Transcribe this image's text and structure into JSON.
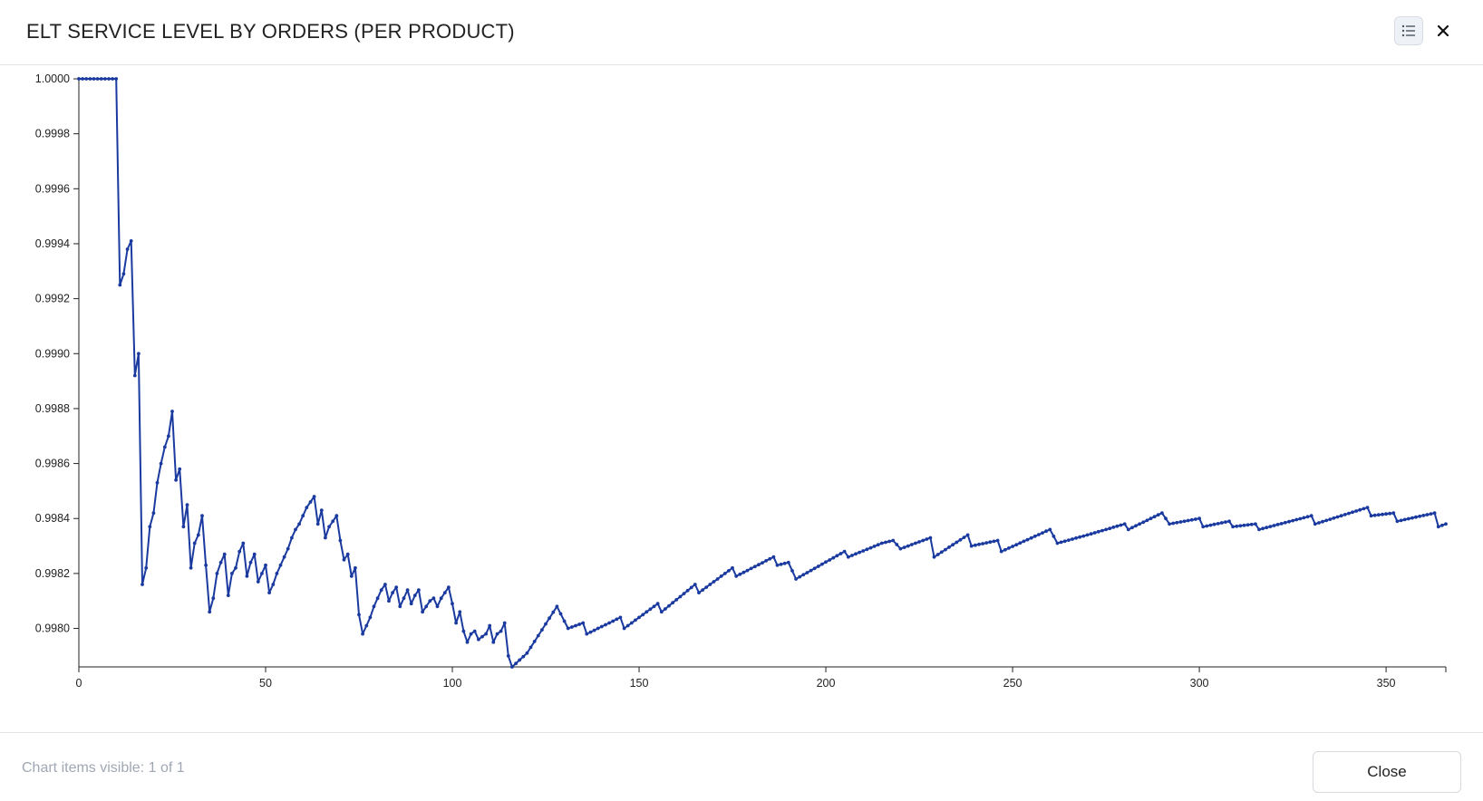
{
  "dialog": {
    "title": "ELT SERVICE LEVEL BY ORDERS (PER PRODUCT)",
    "legend_icon": "list-icon",
    "close_icon": "close-icon"
  },
  "footer": {
    "status": "Chart items visible: 1 of 1",
    "close_label": "Close"
  },
  "colors": {
    "series": "#1a3aa0",
    "axis": "#222222",
    "border": "#e3e3e3"
  },
  "chart_data": {
    "type": "line",
    "title": "",
    "xlabel": "",
    "ylabel": "",
    "xlim": [
      0,
      366
    ],
    "ylim": [
      0.99786,
      1.0
    ],
    "x_ticks": [
      0,
      50,
      100,
      150,
      200,
      250,
      300,
      350
    ],
    "y_ticks": [
      0.998,
      0.9982,
      0.9984,
      0.9986,
      0.9988,
      0.999,
      0.9992,
      0.9994,
      0.9996,
      0.9998,
      1.0
    ],
    "grid": false,
    "legend": "none",
    "series": [
      {
        "keypoints": [
          [
            0,
            1.0
          ],
          [
            10,
            1.0
          ],
          [
            11,
            0.99925
          ],
          [
            12,
            0.99929
          ],
          [
            13,
            0.99938
          ],
          [
            14,
            0.99941
          ],
          [
            15,
            0.99892
          ],
          [
            16,
            0.999
          ],
          [
            17,
            0.99816
          ],
          [
            18,
            0.99822
          ],
          [
            19,
            0.99837
          ],
          [
            20,
            0.99842
          ],
          [
            21,
            0.99853
          ],
          [
            22,
            0.9986
          ],
          [
            23,
            0.99866
          ],
          [
            24,
            0.9987
          ],
          [
            25,
            0.99879
          ],
          [
            26,
            0.99854
          ],
          [
            27,
            0.99858
          ],
          [
            28,
            0.99837
          ],
          [
            29,
            0.99845
          ],
          [
            30,
            0.99822
          ],
          [
            31,
            0.99831
          ],
          [
            32,
            0.99834
          ],
          [
            33,
            0.99841
          ],
          [
            34,
            0.99823
          ],
          [
            35,
            0.99806
          ],
          [
            36,
            0.99811
          ],
          [
            37,
            0.9982
          ],
          [
            38,
            0.99824
          ],
          [
            39,
            0.99827
          ],
          [
            40,
            0.99812
          ],
          [
            41,
            0.9982
          ],
          [
            42,
            0.99822
          ],
          [
            43,
            0.99828
          ],
          [
            44,
            0.99831
          ],
          [
            45,
            0.99819
          ],
          [
            46,
            0.99824
          ],
          [
            47,
            0.99827
          ],
          [
            48,
            0.99817
          ],
          [
            49,
            0.9982
          ],
          [
            50,
            0.99823
          ],
          [
            51,
            0.99813
          ],
          [
            52,
            0.99816
          ],
          [
            53,
            0.9982
          ],
          [
            54,
            0.99823
          ],
          [
            55,
            0.99826
          ],
          [
            56,
            0.99829
          ],
          [
            57,
            0.99833
          ],
          [
            58,
            0.99836
          ],
          [
            59,
            0.99838
          ],
          [
            60,
            0.99841
          ],
          [
            61,
            0.99844
          ],
          [
            62,
            0.99846
          ],
          [
            63,
            0.99848
          ],
          [
            64,
            0.99838
          ],
          [
            65,
            0.99843
          ],
          [
            66,
            0.99833
          ],
          [
            67,
            0.99837
          ],
          [
            68,
            0.99839
          ],
          [
            69,
            0.99841
          ],
          [
            70,
            0.99832
          ],
          [
            71,
            0.99825
          ],
          [
            72,
            0.99827
          ],
          [
            73,
            0.99819
          ],
          [
            74,
            0.99822
          ],
          [
            75,
            0.99805
          ],
          [
            76,
            0.99798
          ],
          [
            77,
            0.99801
          ],
          [
            78,
            0.99804
          ],
          [
            79,
            0.99808
          ],
          [
            80,
            0.99811
          ],
          [
            81,
            0.99814
          ],
          [
            82,
            0.99816
          ],
          [
            83,
            0.9981
          ],
          [
            84,
            0.99813
          ],
          [
            85,
            0.99815
          ],
          [
            86,
            0.99808
          ],
          [
            87,
            0.99811
          ],
          [
            88,
            0.99814
          ],
          [
            89,
            0.99809
          ],
          [
            90,
            0.99812
          ],
          [
            91,
            0.99814
          ],
          [
            92,
            0.99806
          ],
          [
            93,
            0.99808
          ],
          [
            94,
            0.9981
          ],
          [
            95,
            0.99811
          ],
          [
            96,
            0.99808
          ],
          [
            97,
            0.99811
          ],
          [
            98,
            0.99813
          ],
          [
            99,
            0.99815
          ],
          [
            100,
            0.99809
          ],
          [
            101,
            0.99802
          ],
          [
            102,
            0.99806
          ],
          [
            103,
            0.99799
          ],
          [
            104,
            0.99795
          ],
          [
            105,
            0.99798
          ],
          [
            106,
            0.99799
          ],
          [
            107,
            0.99796
          ],
          [
            108,
            0.99797
          ],
          [
            109,
            0.99798
          ],
          [
            110,
            0.99801
          ],
          [
            111,
            0.99795
          ],
          [
            112,
            0.99798
          ],
          [
            113,
            0.99799
          ],
          [
            114,
            0.99802
          ],
          [
            115,
            0.9979
          ],
          [
            116,
            0.99786
          ],
          [
            120,
            0.99791
          ],
          [
            128,
            0.99808
          ],
          [
            131,
            0.998
          ],
          [
            135,
            0.99802
          ],
          [
            136,
            0.99798
          ],
          [
            145,
            0.99804
          ],
          [
            146,
            0.998
          ],
          [
            155,
            0.99809
          ],
          [
            156,
            0.99806
          ],
          [
            165,
            0.99816
          ],
          [
            166,
            0.99813
          ],
          [
            175,
            0.99822
          ],
          [
            176,
            0.99819
          ],
          [
            186,
            0.99826
          ],
          [
            187,
            0.99823
          ],
          [
            190,
            0.99824
          ],
          [
            192,
            0.99818
          ],
          [
            205,
            0.99828
          ],
          [
            206,
            0.99826
          ],
          [
            215,
            0.99831
          ],
          [
            218,
            0.99832
          ],
          [
            220,
            0.99829
          ],
          [
            228,
            0.99833
          ],
          [
            229,
            0.99826
          ],
          [
            238,
            0.99834
          ],
          [
            239,
            0.9983
          ],
          [
            246,
            0.99832
          ],
          [
            247,
            0.99828
          ],
          [
            260,
            0.99836
          ],
          [
            262,
            0.99831
          ],
          [
            270,
            0.99834
          ],
          [
            280,
            0.99838
          ],
          [
            281,
            0.99836
          ],
          [
            290,
            0.99842
          ],
          [
            292,
            0.99838
          ],
          [
            300,
            0.9984
          ],
          [
            301,
            0.99837
          ],
          [
            308,
            0.99839
          ],
          [
            309,
            0.99837
          ],
          [
            315,
            0.99838
          ],
          [
            316,
            0.99836
          ],
          [
            330,
            0.99841
          ],
          [
            331,
            0.99838
          ],
          [
            345,
            0.99844
          ],
          [
            346,
            0.99841
          ],
          [
            352,
            0.99842
          ],
          [
            353,
            0.99839
          ],
          [
            363,
            0.99842
          ],
          [
            364,
            0.99837
          ],
          [
            366,
            0.99838
          ]
        ]
      }
    ]
  }
}
